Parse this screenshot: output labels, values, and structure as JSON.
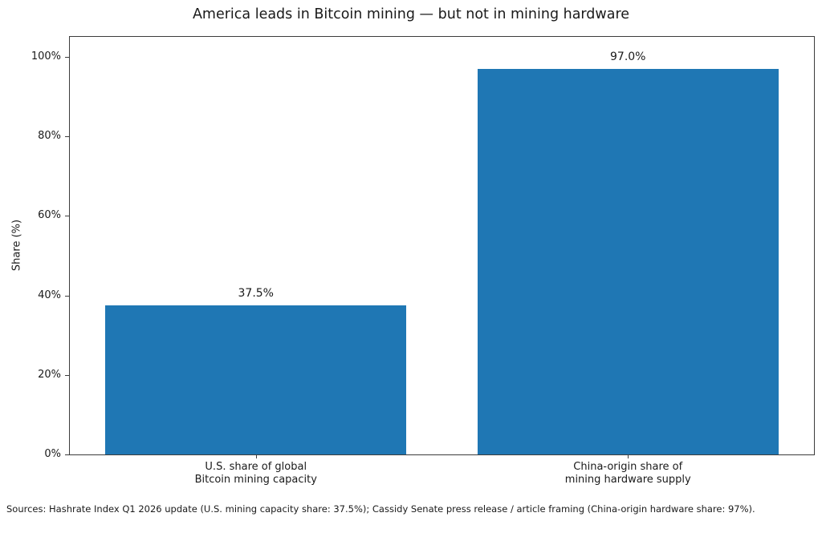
{
  "chart_data": {
    "type": "bar",
    "title": "America leads in Bitcoin mining — but not in mining hardware",
    "ylabel": "Share (%)",
    "xlabel": "",
    "categories": [
      "U.S. share of global\nBitcoin mining capacity",
      "China-origin share of\nmining hardware supply"
    ],
    "values": [
      37.5,
      97.0
    ],
    "value_labels": [
      "37.5%",
      "97.0%"
    ],
    "ylim": [
      0,
      105
    ],
    "yticks": [
      {
        "value": 0,
        "label": "0%"
      },
      {
        "value": 20,
        "label": "20%"
      },
      {
        "value": 40,
        "label": "40%"
      },
      {
        "value": 60,
        "label": "60%"
      },
      {
        "value": 80,
        "label": "80%"
      },
      {
        "value": 100,
        "label": "100%"
      }
    ],
    "grid": false,
    "legend_position": "none",
    "bar_color": "#1f77b4",
    "source_note": "Sources: Hashrate Index Q1 2026 update (U.S. mining capacity share: 37.5%); Cassidy Senate press release / article framing (China-origin hardware share: 97%)."
  }
}
